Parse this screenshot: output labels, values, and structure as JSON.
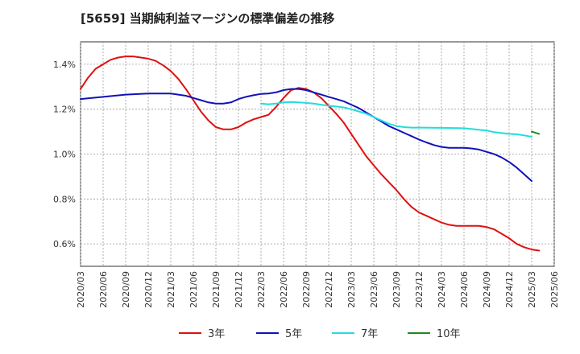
{
  "title": "[5659]  当期純利益マージンの標準偏差の推移",
  "chart_data": {
    "type": "line",
    "title": "[5659]  当期純利益マージンの標準偏差の推移",
    "xlabel": "",
    "ylabel": "",
    "ylim": [
      0.5,
      1.5
    ],
    "grid": true,
    "legend_position": "bottom",
    "x_tick_labels": [
      "2020/03",
      "2020/06",
      "2020/09",
      "2020/12",
      "2021/03",
      "2021/06",
      "2021/09",
      "2021/12",
      "2022/03",
      "2022/06",
      "2022/09",
      "2022/12",
      "2023/03",
      "2023/06",
      "2023/09",
      "2023/12",
      "2024/03",
      "2024/06",
      "2024/09",
      "2024/12",
      "2025/03",
      "2025/06"
    ],
    "y_ticks": [
      {
        "value": 0.6,
        "label": "0.6%"
      },
      {
        "value": 0.8,
        "label": "0.8%"
      },
      {
        "value": 1.0,
        "label": "1.0%"
      },
      {
        "value": 1.2,
        "label": "1.2%"
      },
      {
        "value": 1.4,
        "label": "1.4%"
      }
    ],
    "series": [
      {
        "name": "3年",
        "color": "#dd1111",
        "points": [
          [
            "2020/03",
            1.29
          ],
          [
            "2020/04",
            1.34
          ],
          [
            "2020/05",
            1.38
          ],
          [
            "2020/06",
            1.4
          ],
          [
            "2020/07",
            1.42
          ],
          [
            "2020/08",
            1.43
          ],
          [
            "2020/09",
            1.435
          ],
          [
            "2020/10",
            1.435
          ],
          [
            "2020/11",
            1.43
          ],
          [
            "2020/12",
            1.425
          ],
          [
            "2021/01",
            1.415
          ],
          [
            "2021/02",
            1.395
          ],
          [
            "2021/03",
            1.37
          ],
          [
            "2021/04",
            1.335
          ],
          [
            "2021/05",
            1.29
          ],
          [
            "2021/06",
            1.24
          ],
          [
            "2021/07",
            1.19
          ],
          [
            "2021/08",
            1.15
          ],
          [
            "2021/09",
            1.12
          ],
          [
            "2021/10",
            1.11
          ],
          [
            "2021/11",
            1.11
          ],
          [
            "2021/12",
            1.12
          ],
          [
            "2022/01",
            1.14
          ],
          [
            "2022/02",
            1.155
          ],
          [
            "2022/03",
            1.165
          ],
          [
            "2022/04",
            1.175
          ],
          [
            "2022/05",
            1.21
          ],
          [
            "2022/06",
            1.25
          ],
          [
            "2022/07",
            1.285
          ],
          [
            "2022/08",
            1.295
          ],
          [
            "2022/09",
            1.29
          ],
          [
            "2022/10",
            1.275
          ],
          [
            "2022/11",
            1.25
          ],
          [
            "2022/12",
            1.215
          ],
          [
            "2023/01",
            1.18
          ],
          [
            "2023/02",
            1.14
          ],
          [
            "2023/03",
            1.09
          ],
          [
            "2023/04",
            1.04
          ],
          [
            "2023/05",
            0.99
          ],
          [
            "2023/06",
            0.95
          ],
          [
            "2023/07",
            0.91
          ],
          [
            "2023/08",
            0.875
          ],
          [
            "2023/09",
            0.84
          ],
          [
            "2023/10",
            0.8
          ],
          [
            "2023/11",
            0.765
          ],
          [
            "2023/12",
            0.74
          ],
          [
            "2024/01",
            0.725
          ],
          [
            "2024/02",
            0.71
          ],
          [
            "2024/03",
            0.695
          ],
          [
            "2024/04",
            0.685
          ],
          [
            "2024/05",
            0.68
          ],
          [
            "2024/06",
            0.68
          ],
          [
            "2024/07",
            0.68
          ],
          [
            "2024/08",
            0.68
          ],
          [
            "2024/09",
            0.675
          ],
          [
            "2024/10",
            0.665
          ],
          [
            "2024/11",
            0.645
          ],
          [
            "2024/12",
            0.625
          ],
          [
            "2025/01",
            0.6
          ],
          [
            "2025/02",
            0.585
          ],
          [
            "2025/03",
            0.575
          ],
          [
            "2025/04",
            0.57
          ]
        ]
      },
      {
        "name": "5年",
        "color": "#1111bb",
        "points": [
          [
            "2020/03",
            1.245
          ],
          [
            "2020/06",
            1.255
          ],
          [
            "2020/09",
            1.265
          ],
          [
            "2020/12",
            1.27
          ],
          [
            "2021/03",
            1.27
          ],
          [
            "2021/04",
            1.265
          ],
          [
            "2021/05",
            1.26
          ],
          [
            "2021/06",
            1.25
          ],
          [
            "2021/07",
            1.24
          ],
          [
            "2021/08",
            1.23
          ],
          [
            "2021/09",
            1.225
          ],
          [
            "2021/10",
            1.225
          ],
          [
            "2021/11",
            1.23
          ],
          [
            "2021/12",
            1.245
          ],
          [
            "2022/01",
            1.255
          ],
          [
            "2022/02",
            1.262
          ],
          [
            "2022/03",
            1.268
          ],
          [
            "2022/04",
            1.27
          ],
          [
            "2022/05",
            1.275
          ],
          [
            "2022/06",
            1.285
          ],
          [
            "2022/07",
            1.29
          ],
          [
            "2022/08",
            1.29
          ],
          [
            "2022/09",
            1.285
          ],
          [
            "2022/10",
            1.275
          ],
          [
            "2022/11",
            1.265
          ],
          [
            "2022/12",
            1.255
          ],
          [
            "2023/01",
            1.245
          ],
          [
            "2023/02",
            1.235
          ],
          [
            "2023/03",
            1.22
          ],
          [
            "2023/04",
            1.205
          ],
          [
            "2023/05",
            1.185
          ],
          [
            "2023/06",
            1.165
          ],
          [
            "2023/07",
            1.145
          ],
          [
            "2023/08",
            1.125
          ],
          [
            "2023/09",
            1.11
          ],
          [
            "2023/10",
            1.095
          ],
          [
            "2023/11",
            1.08
          ],
          [
            "2023/12",
            1.065
          ],
          [
            "2024/01",
            1.052
          ],
          [
            "2024/02",
            1.04
          ],
          [
            "2024/03",
            1.032
          ],
          [
            "2024/04",
            1.028
          ],
          [
            "2024/05",
            1.028
          ],
          [
            "2024/06",
            1.028
          ],
          [
            "2024/07",
            1.025
          ],
          [
            "2024/08",
            1.02
          ],
          [
            "2024/09",
            1.01
          ],
          [
            "2024/10",
            1.0
          ],
          [
            "2024/11",
            0.985
          ],
          [
            "2024/12",
            0.965
          ],
          [
            "2025/01",
            0.94
          ],
          [
            "2025/02",
            0.91
          ],
          [
            "2025/03",
            0.88
          ]
        ]
      },
      {
        "name": "7年",
        "color": "#22dddd",
        "points": [
          [
            "2022/03",
            1.225
          ],
          [
            "2022/04",
            1.222
          ],
          [
            "2022/05",
            1.225
          ],
          [
            "2022/06",
            1.23
          ],
          [
            "2022/07",
            1.232
          ],
          [
            "2022/08",
            1.23
          ],
          [
            "2022/09",
            1.228
          ],
          [
            "2022/10",
            1.225
          ],
          [
            "2022/11",
            1.22
          ],
          [
            "2022/12",
            1.215
          ],
          [
            "2023/01",
            1.212
          ],
          [
            "2023/02",
            1.208
          ],
          [
            "2023/03",
            1.2
          ],
          [
            "2023/04",
            1.19
          ],
          [
            "2023/05",
            1.18
          ],
          [
            "2023/06",
            1.165
          ],
          [
            "2023/07",
            1.15
          ],
          [
            "2023/08",
            1.135
          ],
          [
            "2023/09",
            1.125
          ],
          [
            "2023/10",
            1.12
          ],
          [
            "2023/11",
            1.118
          ],
          [
            "2023/12",
            1.118
          ],
          [
            "2024/03",
            1.117
          ],
          [
            "2024/06",
            1.115
          ],
          [
            "2024/09",
            1.105
          ],
          [
            "2024/10",
            1.098
          ],
          [
            "2024/12",
            1.09
          ],
          [
            "2025/01",
            1.088
          ],
          [
            "2025/02",
            1.083
          ],
          [
            "2025/03",
            1.077
          ]
        ]
      },
      {
        "name": "10年",
        "color": "#228822",
        "points": [
          [
            "2025/03",
            1.1
          ],
          [
            "2025/04",
            1.09
          ]
        ]
      }
    ]
  }
}
